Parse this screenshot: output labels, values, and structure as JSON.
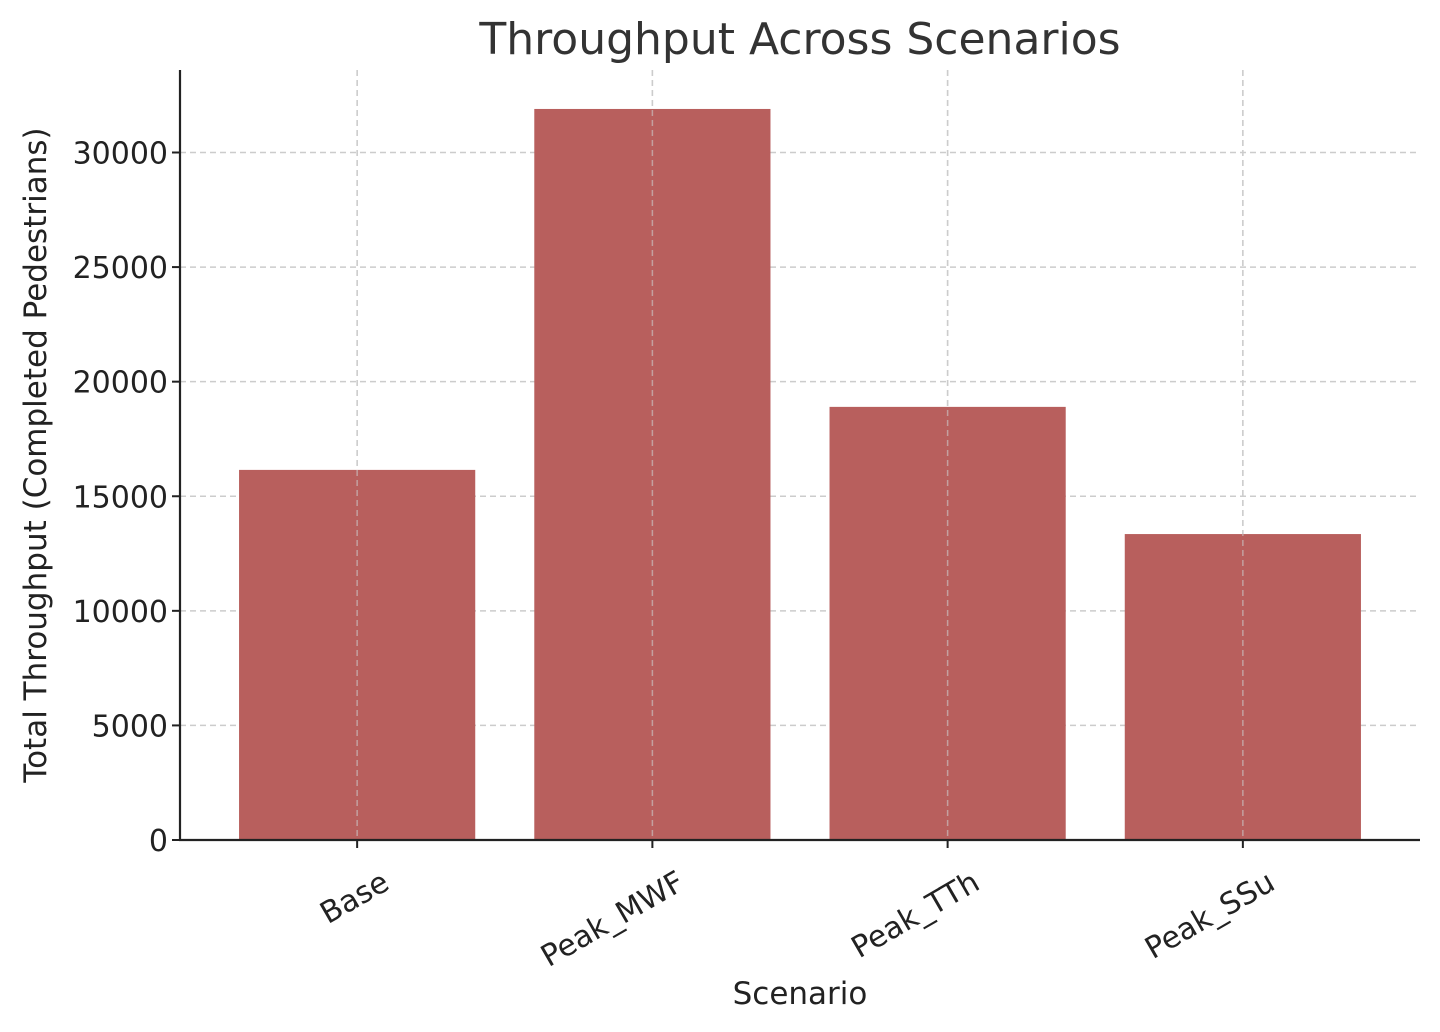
{
  "chart_data": {
    "type": "bar",
    "title": "Throughput Across Scenarios",
    "xlabel": "Scenario",
    "ylabel": "Total Throughput (Completed Pedestrians)",
    "categories": [
      "Base",
      "Peak_MWF",
      "Peak_TTh",
      "Peak_SSu"
    ],
    "values": [
      16150,
      31900,
      18900,
      13350
    ],
    "ylim": [
      0,
      33600
    ],
    "yticks": [
      0,
      5000,
      10000,
      15000,
      20000,
      25000,
      30000
    ],
    "grid": true,
    "bar_color": "#b85f5d",
    "xtick_rotation": -30
  }
}
